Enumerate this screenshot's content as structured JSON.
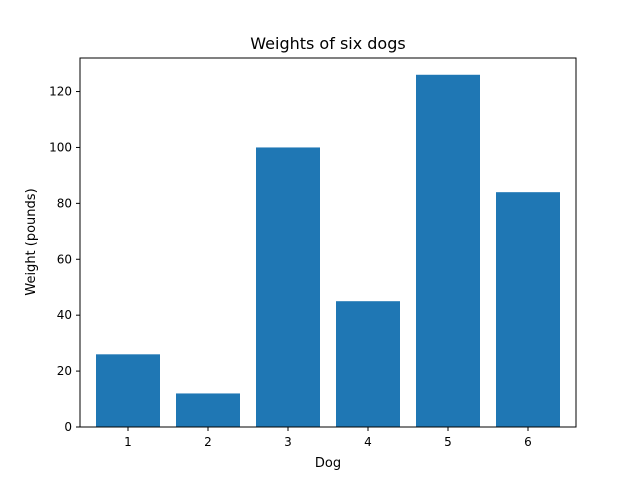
{
  "chart_data": {
    "type": "bar",
    "title": "Weights of six dogs",
    "xlabel": "Dog",
    "ylabel": "Weight (pounds)",
    "categories": [
      "1",
      "2",
      "3",
      "4",
      "5",
      "6"
    ],
    "values": [
      26,
      12,
      100,
      45,
      126,
      84
    ],
    "ylim": [
      0,
      132
    ],
    "yticks": [
      "0",
      "20",
      "40",
      "60",
      "80",
      "100",
      "120"
    ],
    "bar_color": "#1f77b4",
    "grid": false,
    "legend": "none"
  }
}
